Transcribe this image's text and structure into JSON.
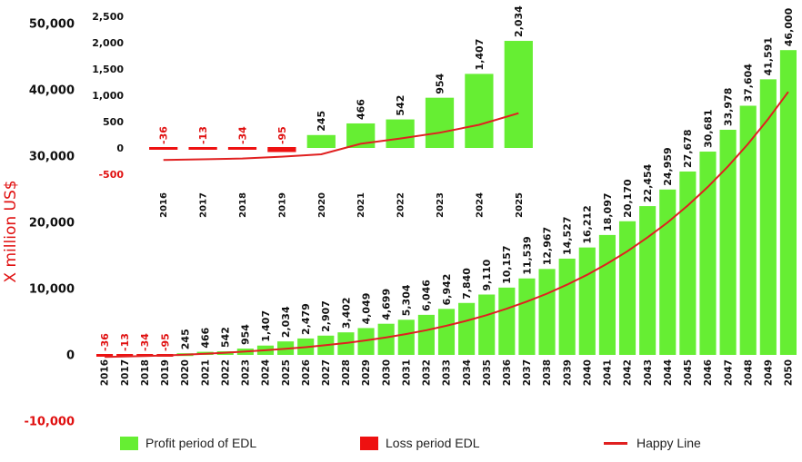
{
  "colors": {
    "profit": "#66ee33",
    "loss": "#ee1111",
    "happy_line": "#e02020",
    "text": "#111111",
    "axis_red": "#e01010",
    "inset_bg": "#ffffff"
  },
  "legend": {
    "profit": "Profit period of EDL",
    "loss": "Loss period EDL",
    "line": "Happy Line"
  },
  "chart_data": [
    {
      "type": "bar",
      "categories": [
        "2016",
        "2017",
        "2018",
        "2019",
        "2020",
        "2021",
        "2022",
        "2023",
        "2024",
        "2025",
        "2026",
        "2027",
        "2028",
        "2029",
        "2030",
        "2031",
        "2032",
        "2033",
        "2034",
        "2035",
        "2036",
        "2037",
        "2038",
        "2039",
        "2040",
        "2041",
        "2042",
        "2043",
        "2044",
        "2045",
        "2046",
        "2047",
        "2048",
        "2049",
        "2050"
      ],
      "series": [
        {
          "name": "Profit period of EDL",
          "values": [
            -36,
            -13,
            -34,
            -95,
            245,
            466,
            542,
            954,
            1407,
            2034,
            2479,
            2907,
            3402,
            4049,
            4699,
            5304,
            6046,
            6942,
            7840,
            9110,
            10157,
            11539,
            12967,
            14527,
            16212,
            18097,
            20170,
            22454,
            24959,
            27678,
            30681,
            33978,
            37604,
            41591,
            46000
          ]
        },
        {
          "name": "Happy Line",
          "type": "line",
          "values": [
            -300,
            -250,
            -170,
            -80,
            40,
            180,
            330,
            500,
            700,
            920,
            1170,
            1460,
            1800,
            2190,
            2640,
            3150,
            3730,
            4400,
            5150,
            6000,
            6970,
            8050,
            9250,
            10600,
            12100,
            13780,
            15650,
            17720,
            20000,
            22550,
            25350,
            28450,
            31850,
            35600,
            39700
          ]
        }
      ],
      "data_labels": [
        "-36",
        "-13",
        "-34",
        "-95",
        "245",
        "466",
        "542",
        "954",
        "1,407",
        "2,034",
        "2,479",
        "2,907",
        "3,402",
        "4,049",
        "4,699",
        "5,304",
        "6,046",
        "6,942",
        "7,840",
        "9,110",
        "10,157",
        "11,539",
        "12,967",
        "14,527",
        "16,212",
        "18,097",
        "20,170",
        "22,454",
        "24,959",
        "27,678",
        "30,681",
        "33,978",
        "37,604",
        "41,591",
        "46,000"
      ],
      "ylabel": "X million US$",
      "ylim": [
        -10000,
        50000
      ],
      "yticks": [
        {
          "value": 50000,
          "label": "50,000"
        },
        {
          "value": 40000,
          "label": "40,000"
        },
        {
          "value": 30000,
          "label": "30,000"
        },
        {
          "value": 20000,
          "label": "20,000"
        },
        {
          "value": 10000,
          "label": "10,000"
        },
        {
          "value": 0,
          "label": "0"
        },
        {
          "value": -10000,
          "label": "-10,000"
        }
      ],
      "grid": false,
      "legend_position": "bottom"
    },
    {
      "type": "bar",
      "inset": true,
      "categories": [
        "2016",
        "2017",
        "2018",
        "2019",
        "2020",
        "2021",
        "2022",
        "2023",
        "2024",
        "2025"
      ],
      "series": [
        {
          "name": "Profit period of EDL",
          "values": [
            -36,
            -13,
            -34,
            -95,
            245,
            466,
            542,
            954,
            1407,
            2034
          ]
        },
        {
          "name": "Happy Line",
          "type": "line",
          "values": [
            -230,
            -215,
            -200,
            -165,
            -120,
            80,
            180,
            290,
            440,
            660
          ]
        }
      ],
      "data_labels": [
        "-36",
        "-13",
        "-34",
        "-95",
        "245",
        "466",
        "542",
        "954",
        "1,407",
        "2,034"
      ],
      "ylim": [
        -500,
        2500
      ],
      "yticks": [
        {
          "value": 2500,
          "label": "2,500"
        },
        {
          "value": 2000,
          "label": "2,000"
        },
        {
          "value": 1500,
          "label": "1,500"
        },
        {
          "value": 1000,
          "label": "1,000"
        },
        {
          "value": 500,
          "label": "500"
        },
        {
          "value": 0,
          "label": "0"
        },
        {
          "value": -500,
          "label": "-500"
        }
      ],
      "grid": false
    }
  ]
}
